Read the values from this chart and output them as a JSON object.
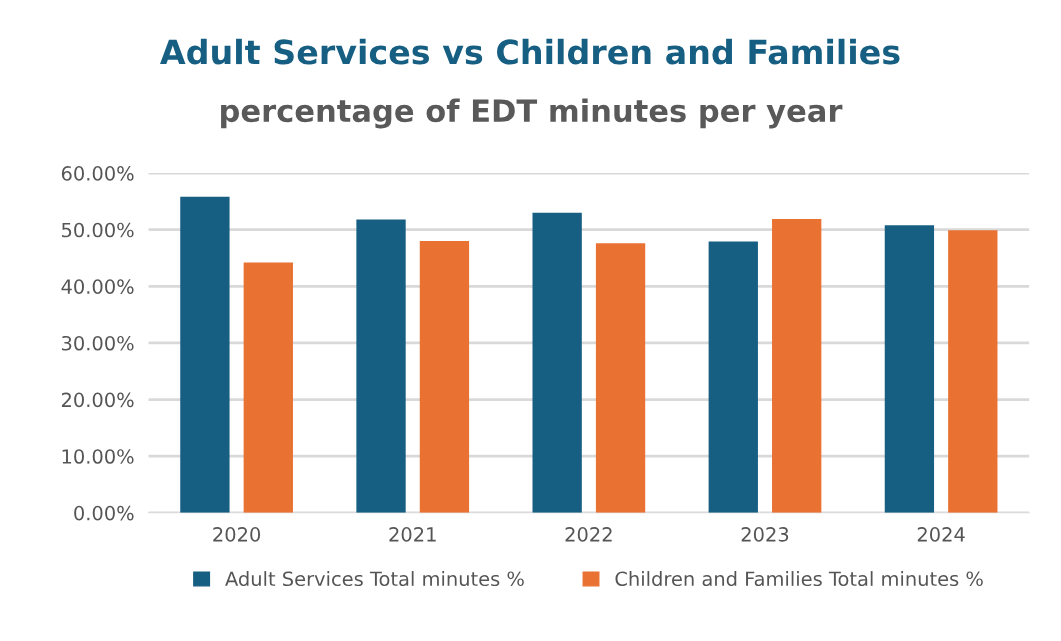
{
  "chart_data": {
    "type": "bar",
    "title": "Adult Services vs Children and Families",
    "subtitle": "percentage of EDT minutes per year",
    "categories": [
      "2020",
      "2021",
      "2022",
      "2023",
      "2024"
    ],
    "series": [
      {
        "name": "Adult Services Total minutes %",
        "color": "#175f82",
        "values": [
          55.8,
          51.8,
          53.0,
          47.9,
          50.8
        ]
      },
      {
        "name": "Children and Families Total minutes %",
        "color": "#e97132",
        "values": [
          44.2,
          48.0,
          47.6,
          51.9,
          49.9
        ]
      }
    ],
    "ylim": [
      0,
      60
    ],
    "yticks": [
      {
        "value": 0,
        "label": "0.00%"
      },
      {
        "value": 10,
        "label": "10.00%"
      },
      {
        "value": 20,
        "label": "20.00%"
      },
      {
        "value": 30,
        "label": "30.00%"
      },
      {
        "value": 40,
        "label": "40.00%"
      },
      {
        "value": 50,
        "label": "50.00%"
      },
      {
        "value": 60,
        "label": "60.00%"
      }
    ],
    "grid": "y",
    "legend": "bottom"
  }
}
